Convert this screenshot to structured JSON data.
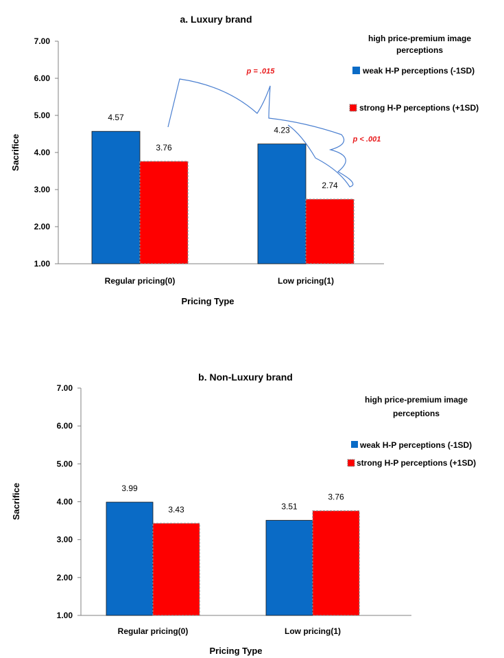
{
  "chart_data": [
    {
      "type": "bar",
      "title": "a. Luxury brand",
      "xlabel": "Pricing Type",
      "ylabel": "Sacrifice",
      "ylim": [
        1,
        7
      ],
      "yticks": [
        "1.00",
        "2.00",
        "3.00",
        "4.00",
        "5.00",
        "6.00",
        "7.00"
      ],
      "categories": [
        "Regular pricing(0)",
        "Low pricing(1)"
      ],
      "series": [
        {
          "name": "weak H-P perceptions (-1SD)",
          "values": [
            4.57,
            4.23
          ],
          "labels": [
            "4.57",
            "4.23"
          ],
          "color": "#0a6bc6"
        },
        {
          "name": "strong H-P perceptions (+1SD)",
          "values": [
            3.76,
            2.74
          ],
          "labels": [
            "3.76",
            "2.74"
          ],
          "color": "#fe0000"
        }
      ],
      "legend": {
        "title": "high price-premium image perceptions",
        "position": "top-right"
      },
      "annotations": [
        "p = .015",
        "p < .001"
      ]
    },
    {
      "type": "bar",
      "title": "b. Non-Luxury brand",
      "xlabel": "Pricing Type",
      "ylabel": "Sacrifice",
      "ylim": [
        1,
        7
      ],
      "yticks": [
        "1.00",
        "2.00",
        "3.00",
        "4.00",
        "5.00",
        "6.00",
        "7.00"
      ],
      "categories": [
        "Regular pricing(0)",
        "Low pricing(1)"
      ],
      "series": [
        {
          "name": "weak H-P perceptions (-1SD)",
          "values": [
            3.99,
            3.51
          ],
          "labels": [
            "3.99",
            "3.51"
          ],
          "color": "#0a6bc6"
        },
        {
          "name": "strong H-P perceptions (+1SD)",
          "values": [
            3.43,
            3.76
          ],
          "labels": [
            "3.43",
            "3.76"
          ],
          "color": "#fe0000"
        }
      ],
      "legend": {
        "title": "high price-premium image perceptions",
        "position": "top-right"
      },
      "annotations": []
    }
  ]
}
